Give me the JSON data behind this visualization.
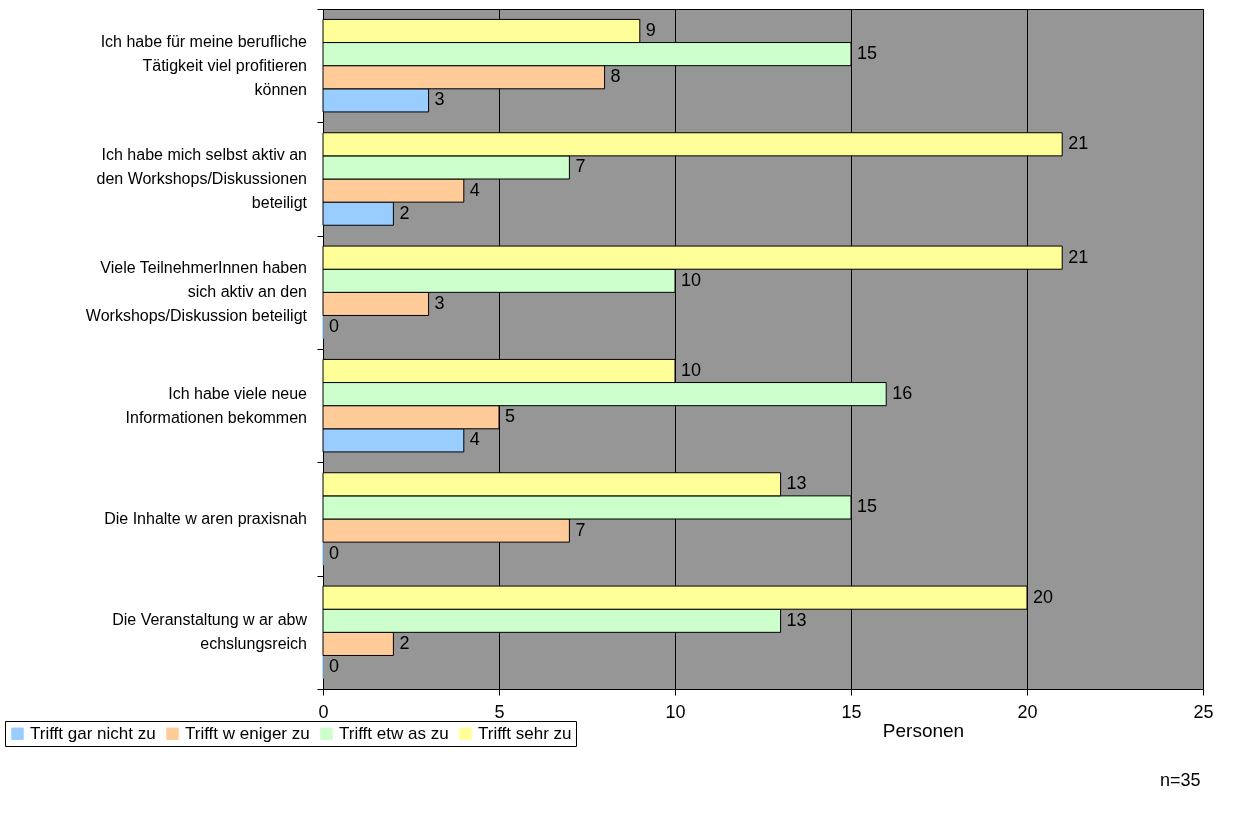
{
  "chart_data": {
    "type": "bar",
    "orientation": "horizontal",
    "xlabel": "Personen",
    "annotations": [
      "n=35"
    ],
    "categories": [
      "Ich habe für meine berufliche Tätigkeit viel profitieren können",
      "Ich habe mich selbst aktiv an den Workshops/Diskussionen beteiligt",
      "Viele TeilnehmerInnen haben sich aktiv an den Workshops/Diskussion beteiligt",
      "Ich habe viele neue Informationen bekommen",
      "Die Inhalte w aren praxisnah",
      "Die Veranstaltung w ar abw echslungsreich"
    ],
    "series": [
      {
        "name": "Trifft gar nicht zu",
        "color": "#99ccff",
        "values": [
          3,
          2,
          0,
          4,
          0,
          0
        ]
      },
      {
        "name": "Trifft w eniger zu",
        "color": "#ffcc99",
        "values": [
          8,
          4,
          3,
          5,
          7,
          2
        ]
      },
      {
        "name": "Trifft etw as zu",
        "color": "#ccffcc",
        "values": [
          15,
          7,
          10,
          16,
          15,
          13
        ]
      },
      {
        "name": "Trifft sehr zu",
        "color": "#ffff99",
        "values": [
          9,
          21,
          21,
          10,
          13,
          20
        ]
      }
    ],
    "xlim": [
      0,
      25
    ],
    "xticks": [
      0,
      5,
      10,
      15,
      20,
      25
    ],
    "grid": "x",
    "legend": "bottom left",
    "data_labels": true
  }
}
